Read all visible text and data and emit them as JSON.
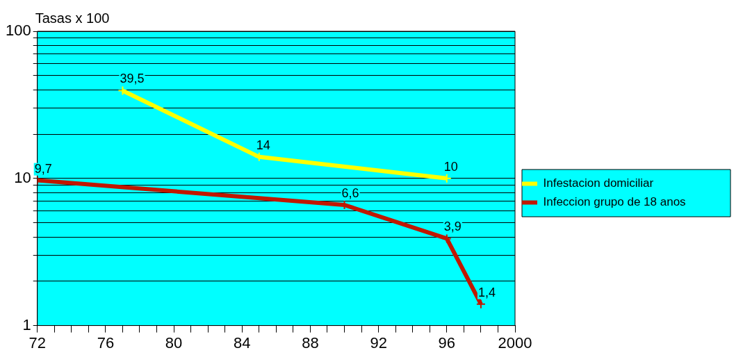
{
  "chart_data": {
    "type": "line",
    "ylabel": "Tasas x 100",
    "log": "y",
    "grid": "y",
    "legend": "right",
    "marker": "cross",
    "line_style": "solid",
    "xlim": [
      1972,
      2000
    ],
    "xticks": [
      {
        "value": 1972,
        "label": "72"
      },
      {
        "value": 1973,
        "label": null
      },
      {
        "value": 1974,
        "label": null
      },
      {
        "value": 1975,
        "label": null
      },
      {
        "value": 1976,
        "label": "76"
      },
      {
        "value": 1977,
        "label": null
      },
      {
        "value": 1978,
        "label": null
      },
      {
        "value": 1979,
        "label": null
      },
      {
        "value": 1980,
        "label": "80"
      },
      {
        "value": 1981,
        "label": null
      },
      {
        "value": 1982,
        "label": null
      },
      {
        "value": 1983,
        "label": null
      },
      {
        "value": 1984,
        "label": "84"
      },
      {
        "value": 1985,
        "label": null
      },
      {
        "value": 1986,
        "label": null
      },
      {
        "value": 1987,
        "label": null
      },
      {
        "value": 1988,
        "label": "88"
      },
      {
        "value": 1989,
        "label": null
      },
      {
        "value": 1990,
        "label": null
      },
      {
        "value": 1991,
        "label": null
      },
      {
        "value": 1992,
        "label": "92"
      },
      {
        "value": 1993,
        "label": null
      },
      {
        "value": 1994,
        "label": null
      },
      {
        "value": 1995,
        "label": null
      },
      {
        "value": 1996,
        "label": "96"
      },
      {
        "value": 1997,
        "label": null
      },
      {
        "value": 1998,
        "label": null
      },
      {
        "value": 1999,
        "label": null
      },
      2000
    ],
    "ylim": [
      1,
      100
    ],
    "yticks": [
      1,
      {
        "value": 2,
        "label": null
      },
      {
        "value": 3,
        "label": null
      },
      {
        "value": 4,
        "label": null
      },
      {
        "value": 5,
        "label": null
      },
      {
        "value": 6,
        "label": null
      },
      {
        "value": 7,
        "label": null
      },
      {
        "value": 8,
        "label": null
      },
      {
        "value": 9,
        "label": null
      },
      10,
      {
        "value": 20,
        "label": null
      },
      {
        "value": 30,
        "label": null
      },
      {
        "value": 40,
        "label": null
      },
      {
        "value": 50,
        "label": null
      },
      {
        "value": 60,
        "label": null
      },
      {
        "value": 70,
        "label": null
      },
      {
        "value": 80,
        "label": null
      },
      {
        "value": 90,
        "label": null
      },
      100
    ],
    "series": [
      {
        "name": "Infestacion domiciliar",
        "color": "#ffff00",
        "x": [
          1977,
          1985,
          1996
        ],
        "values": [
          39.5,
          14,
          10
        ],
        "value_labels": [
          "39,5",
          "14",
          "10"
        ]
      },
      {
        "name": "Infeccion grupo de 18 anos",
        "color": "#c01800",
        "x": [
          1972,
          1990,
          1996,
          1998
        ],
        "values": [
          9.7,
          6.6,
          3.9,
          1.4
        ],
        "value_labels": [
          "9,7",
          "6,6",
          "3,9",
          "1,4"
        ]
      }
    ]
  }
}
